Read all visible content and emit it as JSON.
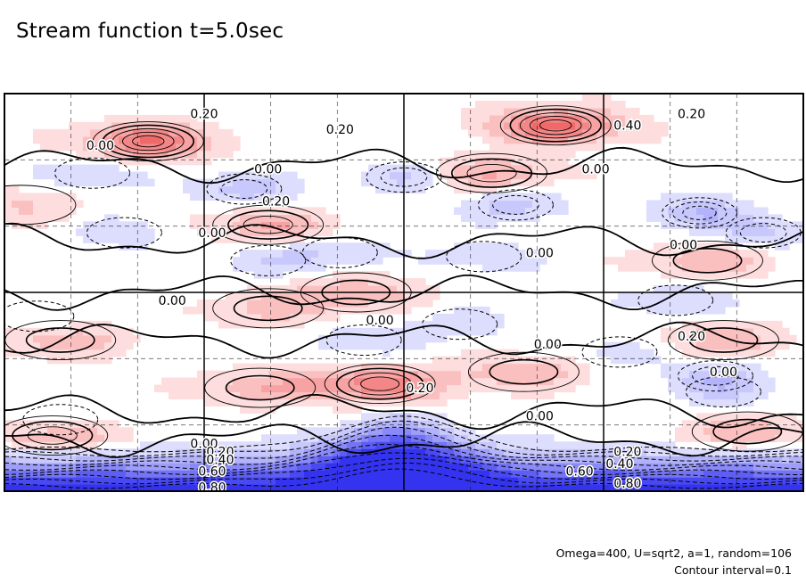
{
  "title": "Stream function t=5.0sec",
  "info": {
    "params": "Omega=400, U=sqrt2, a=1, random=106",
    "contour": "Contour interval=0.1"
  },
  "colors": {
    "positive_max": "#f07070",
    "negative_max": "#3a3af0",
    "frame": "#000000",
    "grid": "#000000"
  },
  "chart_data": {
    "type": "heatmap",
    "title": "Stream function t=5.0sec",
    "xlabel": "",
    "ylabel": "",
    "grid": true,
    "value_range": [
      -0.9,
      0.5
    ],
    "contour_interval": 0.1,
    "contour_labels": [
      {
        "text": "0.00",
        "x": 0.12,
        "y": 0.87
      },
      {
        "text": "0.20",
        "x": 0.25,
        "y": 0.95
      },
      {
        "text": "0.20",
        "x": 0.42,
        "y": 0.91
      },
      {
        "text": "0.40",
        "x": 0.78,
        "y": 0.92
      },
      {
        "text": "0.20",
        "x": 0.86,
        "y": 0.95
      },
      {
        "text": "0.00",
        "x": 0.33,
        "y": 0.81
      },
      {
        "text": "0.00",
        "x": 0.74,
        "y": 0.81
      },
      {
        "text": "0.20",
        "x": 0.34,
        "y": 0.73
      },
      {
        "text": "0.00",
        "x": 0.26,
        "y": 0.65
      },
      {
        "text": "0.00",
        "x": 0.67,
        "y": 0.6
      },
      {
        "text": "0.00",
        "x": 0.85,
        "y": 0.62
      },
      {
        "text": "0.00",
        "x": 0.21,
        "y": 0.48
      },
      {
        "text": "0.00",
        "x": 0.47,
        "y": 0.43
      },
      {
        "text": "0.00",
        "x": 0.68,
        "y": 0.37
      },
      {
        "text": "0.20",
        "x": 0.86,
        "y": 0.39
      },
      {
        "text": "0.00",
        "x": 0.9,
        "y": 0.3
      },
      {
        "text": "0.20",
        "x": 0.52,
        "y": 0.26
      },
      {
        "text": "0.00",
        "x": 0.67,
        "y": 0.19
      },
      {
        "text": "0.00",
        "x": 0.25,
        "y": 0.12
      },
      {
        "text": "0.20",
        "x": 0.27,
        "y": 0.1
      },
      {
        "text": "0.40",
        "x": 0.27,
        "y": 0.08
      },
      {
        "text": "0.60",
        "x": 0.26,
        "y": 0.05
      },
      {
        "text": "0.80",
        "x": 0.26,
        "y": 0.01
      },
      {
        "text": "0.20",
        "x": 0.78,
        "y": 0.1
      },
      {
        "text": "0.40",
        "x": 0.77,
        "y": 0.07
      },
      {
        "text": "0.60",
        "x": 0.72,
        "y": 0.05
      },
      {
        "text": "0.80",
        "x": 0.78,
        "y": 0.02
      }
    ],
    "positive_peaks": [
      {
        "x": 0.18,
        "y": 0.88,
        "value": 0.45
      },
      {
        "x": 0.69,
        "y": 0.92,
        "value": 0.48
      },
      {
        "x": 0.33,
        "y": 0.67,
        "value": 0.25
      },
      {
        "x": 0.61,
        "y": 0.8,
        "value": 0.25
      },
      {
        "x": 0.88,
        "y": 0.58,
        "value": 0.22
      },
      {
        "x": 0.07,
        "y": 0.38,
        "value": 0.22
      },
      {
        "x": 0.44,
        "y": 0.5,
        "value": 0.22
      },
      {
        "x": 0.33,
        "y": 0.46,
        "value": 0.18
      },
      {
        "x": 0.47,
        "y": 0.27,
        "value": 0.4
      },
      {
        "x": 0.32,
        "y": 0.26,
        "value": 0.22
      },
      {
        "x": 0.65,
        "y": 0.3,
        "value": 0.22
      },
      {
        "x": 0.9,
        "y": 0.38,
        "value": 0.22
      },
      {
        "x": 0.06,
        "y": 0.14,
        "value": 0.25
      },
      {
        "x": 0.93,
        "y": 0.15,
        "value": 0.22
      },
      {
        "x": 0.02,
        "y": 0.72,
        "value": 0.15
      }
    ],
    "negative_peaks": [
      {
        "x": 0.11,
        "y": 0.8,
        "value": -0.15
      },
      {
        "x": 0.3,
        "y": 0.76,
        "value": -0.22
      },
      {
        "x": 0.5,
        "y": 0.79,
        "value": -0.18
      },
      {
        "x": 0.64,
        "y": 0.72,
        "value": -0.2
      },
      {
        "x": 0.87,
        "y": 0.7,
        "value": -0.25
      },
      {
        "x": 0.95,
        "y": 0.65,
        "value": -0.18
      },
      {
        "x": 0.15,
        "y": 0.65,
        "value": -0.12
      },
      {
        "x": 0.42,
        "y": 0.6,
        "value": -0.15
      },
      {
        "x": 0.33,
        "y": 0.58,
        "value": -0.15
      },
      {
        "x": 0.6,
        "y": 0.59,
        "value": -0.12
      },
      {
        "x": 0.84,
        "y": 0.48,
        "value": -0.15
      },
      {
        "x": 0.57,
        "y": 0.42,
        "value": -0.12
      },
      {
        "x": 0.45,
        "y": 0.38,
        "value": -0.15
      },
      {
        "x": 0.77,
        "y": 0.35,
        "value": -0.12
      },
      {
        "x": 0.89,
        "y": 0.29,
        "value": -0.2
      },
      {
        "x": 0.04,
        "y": 0.44,
        "value": -0.1
      },
      {
        "x": 0.07,
        "y": 0.18,
        "value": -0.1
      },
      {
        "x": 0.9,
        "y": 0.25,
        "value": -0.12
      }
    ]
  }
}
